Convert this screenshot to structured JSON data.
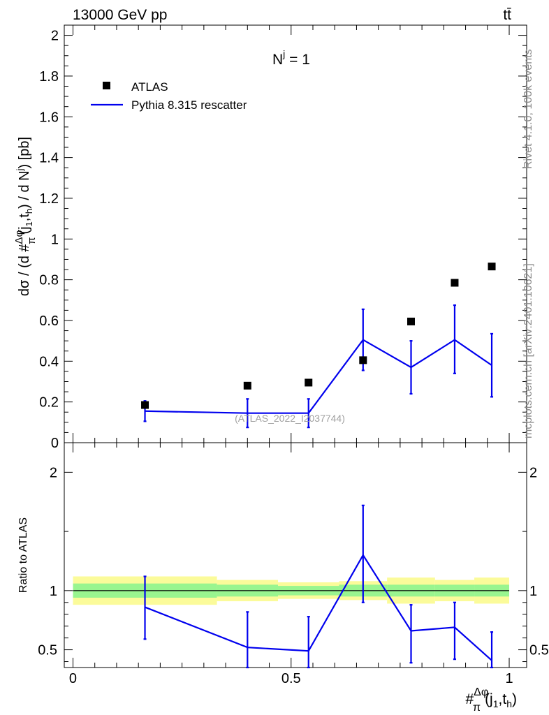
{
  "header": {
    "energy_label": "13000 GeV pp",
    "process_label": "tt̄"
  },
  "side_labels": {
    "rivet": "Rivet 4.1.0,  100k events",
    "mcplots": "mcplots.cern.ch [arXiv:2401.10621]"
  },
  "colors": {
    "data": "#000000",
    "mc": "#0000ee",
    "band_inner": "#99f58f",
    "band_outer": "#fbfb9a",
    "watermark": "#a0a0a0"
  },
  "chart_data": [
    {
      "type": "scatter",
      "panel": "main",
      "title": "N^j = 1",
      "title_main": "N",
      "title_sup": "j",
      "title_rest": " = 1",
      "ylabel": "dσ / (d #Δφ/π(j1,th) / d Nj) [pb]",
      "ylabel_pre": "dσ / (d #",
      "ylabel_frac_num": "Δφ",
      "ylabel_frac_den": "π",
      "ylabel_post": "(j",
      "ylabel_sub1": "1",
      "ylabel_mid": ",t",
      "ylabel_sub2": "h",
      "ylabel_end": ") / d N",
      "ylabel_sup": "j",
      "ylabel_tail": ") [pb]",
      "xlim": [
        -0.02,
        1.04
      ],
      "ylim": [
        0,
        2.05
      ],
      "yticks": [
        0,
        0.2,
        0.4,
        0.6,
        0.8,
        1,
        1.2,
        1.4,
        1.6,
        1.8,
        2
      ],
      "ytick_labels": [
        "0",
        "0.2",
        "0.4",
        "0.6",
        "0.8",
        "1",
        "1.2",
        "1.4",
        "1.6",
        "1.8",
        "2"
      ],
      "watermark": "(ATLAS_2022_I2037744)",
      "legend": [
        {
          "label": "ATLAS",
          "kind": "marker"
        },
        {
          "label": "Pythia 8.315 rescatter",
          "kind": "line"
        }
      ],
      "series": [
        {
          "name": "ATLAS",
          "x": [
            0.165,
            0.4,
            0.54,
            0.665,
            0.775,
            0.875,
            0.96
          ],
          "values": [
            0.185,
            0.28,
            0.295,
            0.405,
            0.595,
            0.785,
            0.865
          ]
        },
        {
          "name": "Pythia 8.315 rescatter",
          "x": [
            0.165,
            0.4,
            0.54,
            0.665,
            0.775,
            0.875,
            0.96
          ],
          "values": [
            0.155,
            0.145,
            0.145,
            0.505,
            0.37,
            0.505,
            0.38
          ],
          "err_low": [
            0.105,
            0.075,
            0.075,
            0.355,
            0.24,
            0.34,
            0.225
          ],
          "err_high": [
            0.205,
            0.215,
            0.215,
            0.655,
            0.5,
            0.675,
            0.535
          ]
        }
      ]
    },
    {
      "type": "line",
      "panel": "ratio",
      "ylabel": "Ratio to ATLAS",
      "xlabel": "#Δφ/π(j1,th)",
      "xlabel_pre": "#",
      "xlabel_frac_num": "Δφ",
      "xlabel_frac_den": "π",
      "xlabel_post": "(j",
      "xlabel_sub1": "1",
      "xlabel_mid": ",t",
      "xlabel_sub2": "h",
      "xlabel_end": ")",
      "xlim": [
        -0.02,
        1.04
      ],
      "ylim": [
        0.35,
        2.25
      ],
      "xticks": [
        0,
        0.5,
        1
      ],
      "xtick_labels": [
        "0",
        "0.5",
        "1"
      ],
      "yticks": [
        0.5,
        1,
        2
      ],
      "ytick_labels": [
        "0.5",
        "1",
        "2"
      ],
      "reference": 1,
      "bins": [
        {
          "x0": 0.0,
          "x1": 0.33,
          "inner_lo": 0.94,
          "inner_hi": 1.06,
          "outer_lo": 0.88,
          "outer_hi": 1.12
        },
        {
          "x0": 0.33,
          "x1": 0.47,
          "inner_lo": 0.95,
          "inner_hi": 1.05,
          "outer_lo": 0.91,
          "outer_hi": 1.09
        },
        {
          "x0": 0.47,
          "x1": 0.61,
          "inner_lo": 0.96,
          "inner_hi": 1.04,
          "outer_lo": 0.93,
          "outer_hi": 1.07
        },
        {
          "x0": 0.61,
          "x1": 0.72,
          "inner_lo": 0.95,
          "inner_hi": 1.05,
          "outer_lo": 0.92,
          "outer_hi": 1.08
        },
        {
          "x0": 0.72,
          "x1": 0.83,
          "inner_lo": 0.95,
          "inner_hi": 1.05,
          "outer_lo": 0.89,
          "outer_hi": 1.11
        },
        {
          "x0": 0.83,
          "x1": 0.92,
          "inner_lo": 0.95,
          "inner_hi": 1.05,
          "outer_lo": 0.91,
          "outer_hi": 1.09
        },
        {
          "x0": 0.92,
          "x1": 1.0,
          "inner_lo": 0.95,
          "inner_hi": 1.05,
          "outer_lo": 0.89,
          "outer_hi": 1.11
        }
      ],
      "series": [
        {
          "name": "Pythia 8.315 rescatter",
          "x": [
            0.165,
            0.4,
            0.54,
            0.665,
            0.775,
            0.875,
            0.96
          ],
          "values": [
            0.86,
            0.52,
            0.49,
            1.3,
            0.66,
            0.69,
            0.41
          ],
          "err_low": [
            0.59,
            0.33,
            0.33,
            0.9,
            0.39,
            0.42,
            0.3
          ],
          "err_high": [
            1.12,
            0.82,
            0.78,
            1.72,
            0.88,
            0.9,
            0.65
          ]
        }
      ]
    }
  ]
}
